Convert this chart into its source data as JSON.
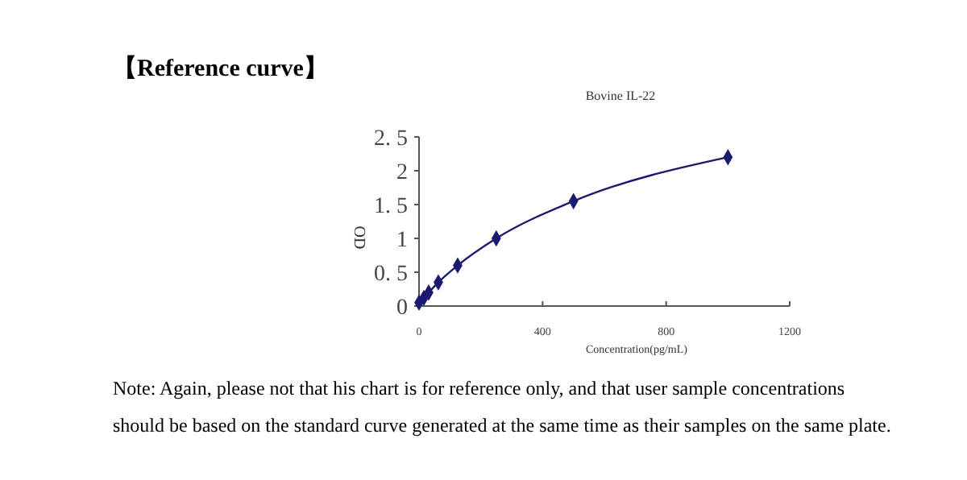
{
  "chart_data": {
    "type": "line",
    "title": "Bovine IL-22",
    "xlabel": "Concentration(pg/mL)",
    "ylabel": "OD",
    "x": [
      0,
      15.6,
      31.25,
      62.5,
      125,
      250,
      500,
      1000
    ],
    "series": [
      {
        "color": "#1a1a6e",
        "values": [
          0.05,
          0.12,
          0.2,
          0.35,
          0.6,
          1.0,
          1.55,
          2.2
        ]
      }
    ],
    "xlim": [
      0,
      1200
    ],
    "xticks": [
      0,
      400,
      800,
      1200
    ],
    "ylim": [
      0,
      2.5
    ],
    "yticks": [
      0,
      {
        "value": 0.5,
        "label": "0. 5"
      },
      1,
      {
        "value": 1.5,
        "label": "1. 5"
      },
      2,
      {
        "value": 2.5,
        "label": "2. 5"
      }
    ],
    "marker": "diamond",
    "grid": false,
    "annotations": [
      "【Reference curve】",
      "Note: Again, please not that his chart is for reference only, and that user sample concentrations should be based on the standard curve generated at the same time as their samples on the same plate."
    ]
  }
}
